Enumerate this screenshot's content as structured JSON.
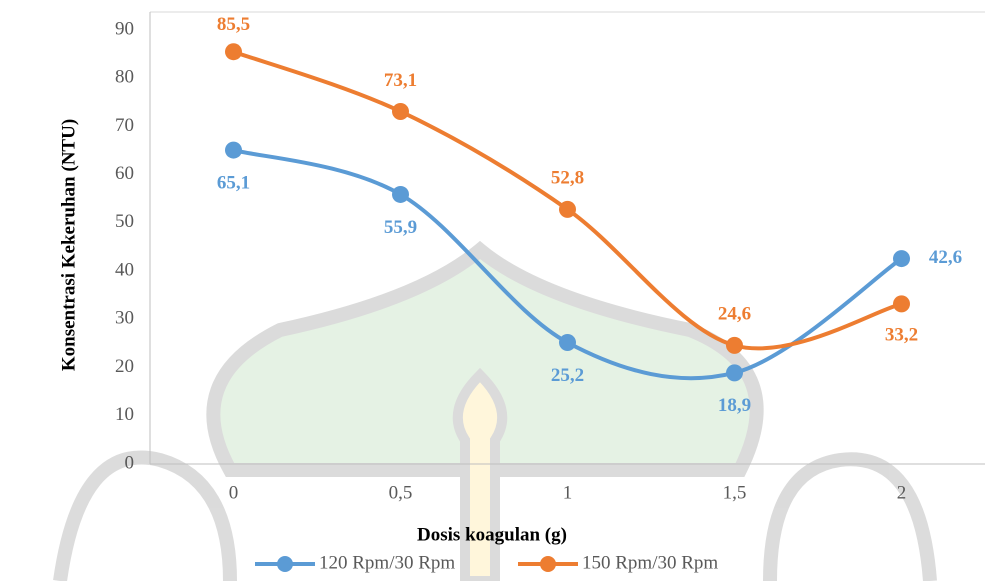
{
  "chart_data": {
    "type": "line",
    "x_label": "Dosis koagulan (g)",
    "y_label": "Konsentrasi Kekeruhan (NTU)",
    "categories": [
      "0",
      "0,5",
      "1",
      "1,5",
      "2"
    ],
    "series": [
      {
        "name": "120 Rpm/30 Rpm",
        "color": "#5b9bd5",
        "values": [
          65.1,
          55.9,
          25.2,
          18.9,
          42.6
        ],
        "value_labels": [
          "65,1",
          "55,9",
          "25,2",
          "18,9",
          "42,6"
        ]
      },
      {
        "name": "150 Rpm/30 Rpm",
        "color": "#ed7d31",
        "values": [
          85.5,
          73.1,
          52.8,
          24.6,
          33.2
        ],
        "value_labels": [
          "85,5",
          "73,1",
          "52,8",
          "24,6",
          "33,2"
        ]
      }
    ],
    "ylim": [
      0,
      90
    ],
    "yticks": [
      0,
      10,
      20,
      30,
      40,
      50,
      60,
      70,
      80,
      90
    ],
    "legend": "bottom"
  }
}
